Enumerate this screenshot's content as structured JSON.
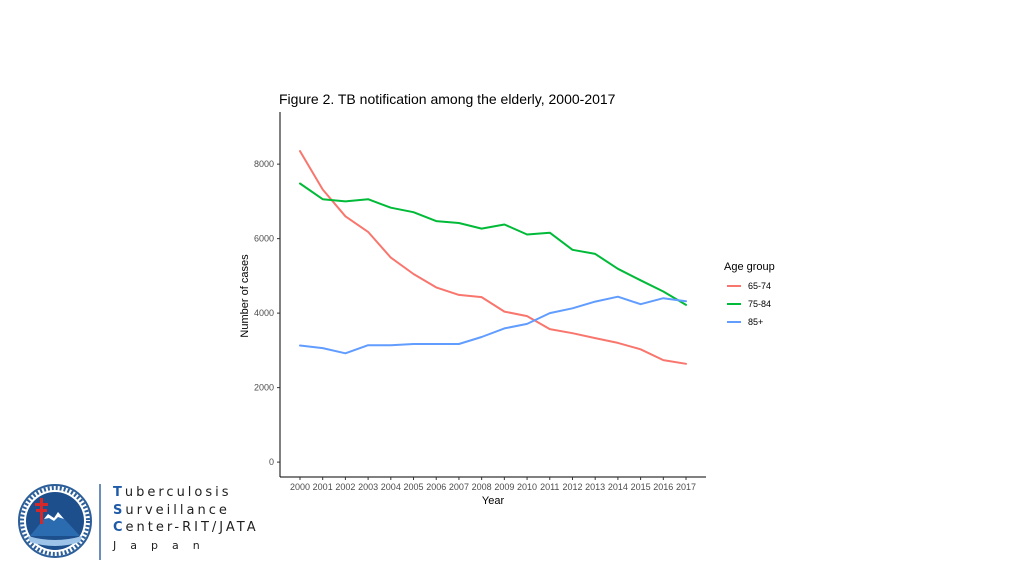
{
  "chart_data": {
    "type": "line",
    "title": "Figure 2. TB notification among the elderly, 2000-2017",
    "xlabel": "Year",
    "ylabel": "Number of cases",
    "x": [
      2000,
      2001,
      2002,
      2003,
      2004,
      2005,
      2006,
      2007,
      2008,
      2009,
      2010,
      2011,
      2012,
      2013,
      2014,
      2015,
      2016,
      2017
    ],
    "ylim": [
      -400,
      9400
    ],
    "yticks": [
      0,
      2000,
      4000,
      6000,
      8000
    ],
    "legend_title": "Age group",
    "legend_position": "right",
    "series": [
      {
        "name": "65-74",
        "color": "#F8766D",
        "values": [
          8350,
          7320,
          6600,
          6180,
          5490,
          5050,
          4690,
          4490,
          4430,
          4040,
          3920,
          3570,
          3460,
          3330,
          3200,
          3030,
          2740,
          2640
        ]
      },
      {
        "name": "75-84",
        "color": "#00BA38",
        "values": [
          7480,
          7060,
          7000,
          7060,
          6830,
          6710,
          6470,
          6420,
          6270,
          6380,
          6110,
          6160,
          5700,
          5590,
          5190,
          4880,
          4580,
          4220
        ]
      },
      {
        "name": "85+",
        "color": "#619CFF",
        "values": [
          3130,
          3060,
          2920,
          3140,
          3140,
          3170,
          3170,
          3170,
          3360,
          3590,
          3710,
          4000,
          4130,
          4310,
          4440,
          4240,
          4400,
          4320
        ]
      }
    ]
  },
  "branding": {
    "line1_cap": "T",
    "line1_rest": "uberculosis",
    "line2_cap": "S",
    "line2_rest": "urveillance",
    "line3_cap": "C",
    "line3_rest": "enter-RIT/JATA",
    "line4": "Japan",
    "logo_icon": "tb-cross-mountain-seal-icon"
  }
}
